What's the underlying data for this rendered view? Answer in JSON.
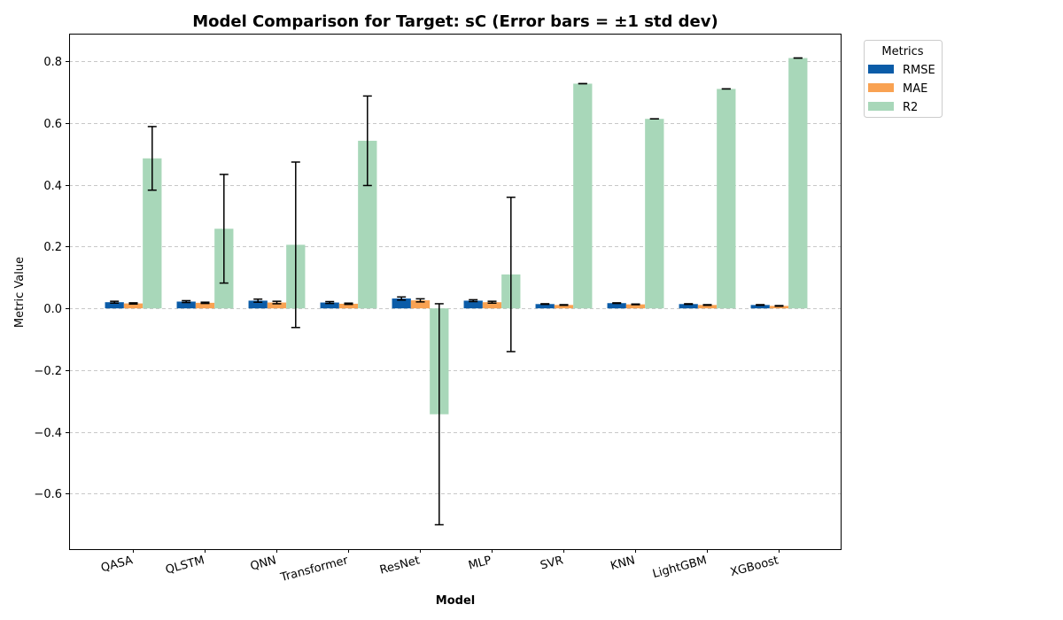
{
  "chart_data": {
    "type": "bar",
    "title": "Model Comparison for Target: sC (Error bars = ±1 std dev)",
    "xlabel": "Model",
    "ylabel": "Metric Value",
    "categories": [
      "QASA",
      "QLSTM",
      "QNN",
      "Transformer",
      "ResNet",
      "MLP",
      "SVR",
      "KNN",
      "LightGBM",
      "XGBoost"
    ],
    "ylim": [
      -0.78,
      0.89
    ],
    "yticks": [
      -0.6,
      -0.4,
      -0.2,
      0.0,
      0.2,
      0.4,
      0.6,
      0.8
    ],
    "ytick_labels": [
      "−0.6",
      "−0.4",
      "−0.2",
      "0.0",
      "0.2",
      "0.4",
      "0.6",
      "0.8"
    ],
    "grid": "y-dashed",
    "legend": {
      "title": "Metrics",
      "placement": "top-right-outside"
    },
    "series": [
      {
        "name": "RMSE",
        "color": "#0b5ca8",
        "values": [
          0.02,
          0.022,
          0.025,
          0.019,
          0.032,
          0.025,
          0.014,
          0.017,
          0.014,
          0.011
        ],
        "errors": [
          0.003,
          0.003,
          0.005,
          0.003,
          0.005,
          0.003,
          0.001,
          0.001,
          0.001,
          0.001
        ]
      },
      {
        "name": "MAE",
        "color": "#f9a252",
        "values": [
          0.016,
          0.018,
          0.019,
          0.015,
          0.026,
          0.02,
          0.011,
          0.013,
          0.011,
          0.008
        ],
        "errors": [
          0.002,
          0.002,
          0.004,
          0.002,
          0.005,
          0.003,
          0.001,
          0.001,
          0.001,
          0.001
        ]
      },
      {
        "name": "R2",
        "color": "#a8d7b9",
        "values": [
          0.486,
          0.258,
          0.206,
          0.543,
          -0.343,
          0.11,
          0.728,
          0.614,
          0.711,
          0.811
        ],
        "errors": [
          0.103,
          0.176,
          0.268,
          0.145,
          0.358,
          0.25,
          0.0,
          0.0,
          0.0,
          0.0
        ]
      }
    ]
  }
}
